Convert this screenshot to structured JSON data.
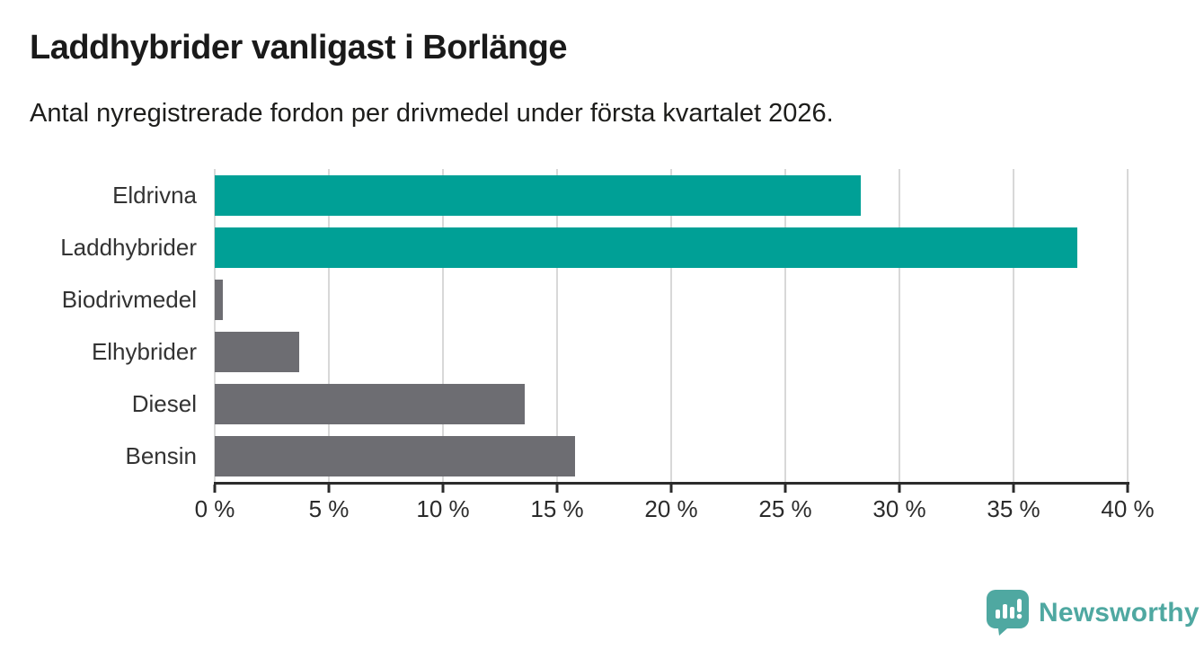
{
  "header": {
    "title": "Laddhybrider vanligast i Borlänge",
    "subtitle": "Antal nyregistrerade fordon per drivmedel under första kvartalet 2026."
  },
  "chart_data": {
    "type": "bar",
    "orientation": "horizontal",
    "title": "Laddhybrider vanligast i Borlänge",
    "subtitle": "Antal nyregistrerade fordon per drivmedel under första kvartalet 2026.",
    "categories": [
      "Eldrivna",
      "Laddhybrider",
      "Biodrivmedel",
      "Elhybrider",
      "Diesel",
      "Bensin"
    ],
    "values": [
      28.3,
      37.8,
      0.35,
      3.7,
      13.6,
      15.8
    ],
    "unit": "%",
    "xlim": [
      0,
      40
    ],
    "xticks": [
      0,
      5,
      10,
      15,
      20,
      25,
      30,
      35,
      40
    ],
    "xtick_labels": [
      "0 %",
      "5 %",
      "10 %",
      "15 %",
      "20 %",
      "25 %",
      "30 %",
      "35 %",
      "40 %"
    ],
    "grid": "vertical-gridlines-on",
    "legend": "none",
    "bar_colors": [
      "#00a096",
      "#00a096",
      "#6d6d72",
      "#6d6d72",
      "#6d6d72",
      "#6d6d72"
    ],
    "highlight_color": "#00a096",
    "default_color": "#6d6d72",
    "gridline_color": "#d8d8d8",
    "axis_color": "#2b2b2b"
  },
  "footer": {
    "brand": "Newsworthy",
    "brand_color": "#4fa8a1",
    "logo_icon": "newsworthy-chart-bubble-icon"
  }
}
